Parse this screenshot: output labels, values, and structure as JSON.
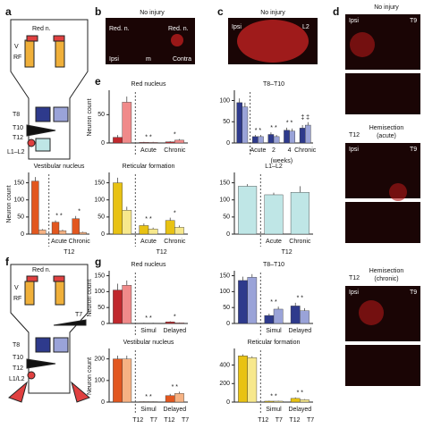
{
  "panels": {
    "letters": [
      "a",
      "b",
      "c",
      "d",
      "e",
      "f",
      "g"
    ],
    "a": {
      "labels": [
        "Red n.",
        "V",
        "RF",
        "T8",
        "T10",
        "T12",
        "L1–L2"
      ]
    },
    "b": {
      "title": "No injury",
      "labels": [
        "Red. n.",
        "Red. n.",
        "Ipsi",
        "m",
        "Contra"
      ]
    },
    "c": {
      "title": "No injury",
      "labels": [
        "Ipsi",
        "L2"
      ]
    },
    "d": {
      "texts": [
        "No injury",
        "Ipsi",
        "T9",
        "Hemisection",
        "(acute)",
        "T12",
        "Ipsi",
        "T9",
        "Hemisection",
        "(chronic)",
        "T12",
        "Ipsi",
        "T9"
      ]
    },
    "f": {
      "labels": [
        "Red n.",
        "V",
        "RF",
        "T7",
        "T8",
        "T10",
        "T12",
        "L1/L2"
      ]
    }
  },
  "chart_data": [
    {
      "type": "bar",
      "title": "Vestibular nucleus",
      "y_label": "Neuron count",
      "categories": [
        null,
        "Acute",
        "Chronic"
      ],
      "ylim": [
        0,
        175
      ],
      "yticks": [
        0,
        50,
        100,
        150
      ],
      "series": [
        {
          "color": "#e2571f",
          "values": [
            155,
            35,
            45
          ],
          "errors": [
            12,
            5,
            8
          ]
        },
        {
          "color": "#f6b283",
          "values": [
            12,
            10,
            5
          ],
          "errors": [
            3,
            3,
            2
          ]
        }
      ],
      "annotations": [
        "*  *",
        "*"
      ],
      "x_notes": [
        "T12"
      ]
    },
    {
      "type": "bar",
      "title": "Red nucleus",
      "y_label": "Neuron count",
      "categories": [
        null,
        "Acute",
        "Chronic"
      ],
      "ylim": [
        0,
        90
      ],
      "yticks": [
        0,
        50
      ],
      "series": [
        {
          "color": "#c0282d",
          "values": [
            10,
            1,
            2
          ],
          "errors": [
            4,
            1,
            1
          ]
        },
        {
          "color": "#f08a8a",
          "values": [
            72,
            1,
            5
          ],
          "errors": [
            10,
            1,
            2
          ]
        }
      ],
      "annotations": [
        "*  *",
        "*"
      ],
      "x_notes": []
    },
    {
      "type": "bar",
      "title": "Reticular formation",
      "categories": [
        null,
        "Acute",
        "Chronic"
      ],
      "ylim": [
        0,
        175
      ],
      "yticks": [
        0,
        50,
        100,
        150
      ],
      "series": [
        {
          "color": "#e8c213",
          "values": [
            150,
            25,
            40
          ],
          "errors": [
            15,
            6,
            8
          ]
        },
        {
          "color": "#f7e88c",
          "values": [
            70,
            15,
            20
          ],
          "errors": [
            10,
            4,
            5
          ]
        }
      ],
      "annotations": [
        "*  *",
        "*"
      ],
      "x_notes": [
        "T12"
      ]
    },
    {
      "type": "bar",
      "title": "T8–T10",
      "categories": [
        null,
        "Acute",
        "2",
        "4",
        "Chronic"
      ],
      "ylim": [
        0,
        120
      ],
      "yticks": [
        0,
        50,
        100
      ],
      "series": [
        {
          "color": "#2e3a8c",
          "values": [
            95,
            15,
            20,
            30,
            35
          ],
          "errors": [
            10,
            4,
            5,
            6,
            7
          ]
        },
        {
          "color": "#9aa3d8",
          "values": [
            85,
            15,
            15,
            28,
            42
          ],
          "errors": [
            10,
            4,
            4,
            6,
            7
          ]
        }
      ],
      "annotations": [
        "*  *",
        "*  *",
        "*  *",
        "‡  ‡"
      ],
      "x_notes": [
        "(weeks)"
      ]
    },
    {
      "type": "bar",
      "title": "L1–L2",
      "categories": [
        null,
        "Acute",
        "Chronic"
      ],
      "ylim": [
        0,
        175
      ],
      "yticks": [
        0,
        50,
        100,
        150
      ],
      "series": [
        {
          "color": "#bfe6e6",
          "values": [
            140,
            115,
            122
          ],
          "errors": [
            6,
            6,
            18
          ]
        }
      ],
      "annotations": [],
      "x_notes": [
        "T12"
      ]
    },
    {
      "type": "bar",
      "title": "Red nucleus",
      "y_label": "Neuron count",
      "categories": [
        null,
        "Simul",
        "Delayed"
      ],
      "ylim": [
        0,
        160
      ],
      "yticks": [
        0,
        50,
        100,
        150
      ],
      "series": [
        {
          "color": "#c0282d",
          "values": [
            105,
            1,
            5
          ],
          "errors": [
            20,
            1,
            2
          ]
        },
        {
          "color": "#f08a8a",
          "values": [
            120,
            1,
            2
          ],
          "errors": [
            15,
            1,
            1
          ]
        }
      ],
      "annotations": [
        "*  *",
        "*"
      ],
      "x_notes": []
    },
    {
      "type": "bar",
      "title": "T8–T10",
      "categories": [
        null,
        "Simul",
        "Delayed"
      ],
      "ylim": [
        0,
        160
      ],
      "yticks": [
        0,
        50,
        100,
        150
      ],
      "series": [
        {
          "color": "#2e3a8c",
          "values": [
            135,
            25,
            55
          ],
          "errors": [
            12,
            6,
            10
          ]
        },
        {
          "color": "#9aa3d8",
          "values": [
            145,
            45,
            40
          ],
          "errors": [
            10,
            8,
            8
          ]
        }
      ],
      "annotations": [
        "*  *",
        "*  *"
      ],
      "x_notes": []
    },
    {
      "type": "bar",
      "title": "Vestibular nucleus",
      "y_label": "Neuron count",
      "categories": [
        null,
        "Simul",
        "Delayed"
      ],
      "ylim": [
        0,
        240
      ],
      "yticks": [
        0,
        100,
        200
      ],
      "series": [
        {
          "color": "#e2571f",
          "values": [
            200,
            2,
            30
          ],
          "errors": [
            15,
            1,
            8
          ]
        },
        {
          "color": "#f6b283",
          "values": [
            200,
            2,
            40
          ],
          "errors": [
            15,
            1,
            8
          ]
        }
      ],
      "annotations": [
        "*  *",
        "*  *"
      ],
      "x_notes": [
        "T12",
        "T7",
        "T12",
        "T7"
      ]
    },
    {
      "type": "bar",
      "title": "Reticular formation",
      "categories": [
        null,
        "Simul",
        "Delayed"
      ],
      "ylim": [
        0,
        560
      ],
      "yticks": [
        0,
        200,
        400
      ],
      "series": [
        {
          "color": "#e8c213",
          "values": [
            500,
            10,
            40
          ],
          "errors": [
            15,
            4,
            10
          ]
        },
        {
          "color": "#f7e88c",
          "values": [
            480,
            10,
            25
          ],
          "errors": [
            15,
            4,
            8
          ]
        }
      ],
      "annotations": [
        "*  *",
        "*  *"
      ],
      "x_notes": [
        "T12",
        "T7",
        "T12",
        "T7"
      ]
    }
  ]
}
